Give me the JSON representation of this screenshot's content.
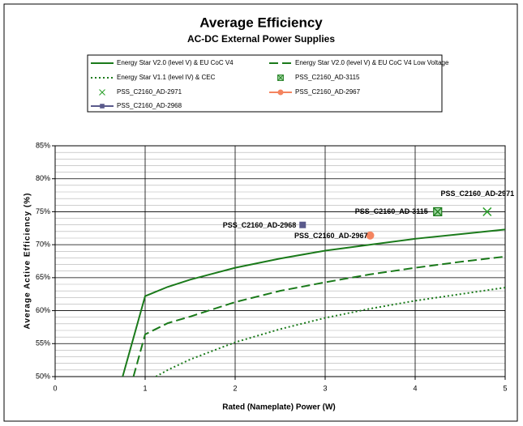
{
  "chart_data": {
    "type": "line",
    "title": "Average Efficiency",
    "subtitle": "AC-DC External Power Supplies",
    "x_label": "Rated (Nameplate) Power (W)",
    "y_label": "Average Active Efficiency (%)",
    "xlim": [
      0,
      5
    ],
    "xticks": [
      0,
      1,
      2,
      3,
      4,
      5
    ],
    "ylim": [
      50,
      85
    ],
    "yticks": [
      {
        "value": 50,
        "label": "50%"
      },
      {
        "value": 55,
        "label": "55%"
      },
      {
        "value": 60,
        "label": "60%"
      },
      {
        "value": 65,
        "label": "65%"
      },
      {
        "value": 70,
        "label": "70%"
      },
      {
        "value": 75,
        "label": "75%"
      },
      {
        "value": 80,
        "label": "80%"
      },
      {
        "value": 85,
        "label": "85%"
      }
    ],
    "grid": true,
    "series": [
      {
        "name": "Energy Star V2.0 (level V) & EU CoC V4",
        "color": "#1a7a1a",
        "style": "solid",
        "x": [
          0.75,
          1,
          1.25,
          1.5,
          2,
          2.5,
          3,
          3.5,
          4,
          4.5,
          5
        ],
        "values": [
          50,
          62.2,
          63.6,
          64.7,
          66.5,
          67.9,
          69.1,
          70.0,
          70.9,
          71.6,
          72.3
        ]
      },
      {
        "name": "Energy Star V2.0 (level V) & EU CoC V4 Low Voltage",
        "color": "#1a7a1a",
        "style": "dashed",
        "x": [
          0.87,
          1,
          1.25,
          1.5,
          2,
          2.5,
          3,
          3.5,
          4,
          4.5,
          5
        ],
        "values": [
          50,
          56.4,
          58.1,
          59.1,
          61.3,
          63.0,
          64.3,
          65.5,
          66.5,
          67.4,
          68.2
        ]
      },
      {
        "name": "Energy Star V1.1  (level IV) & CEC",
        "color": "#1a7a1a",
        "style": "dotted",
        "x": [
          1.12,
          1.25,
          1.5,
          2,
          2.5,
          3,
          3.5,
          4,
          4.5,
          5
        ],
        "values": [
          50,
          51.0,
          52.6,
          55.2,
          57.2,
          58.9,
          60.3,
          61.5,
          62.5,
          63.5
        ]
      },
      {
        "name": "PSS_C2160_AD-3115",
        "color": "#1a7a1a",
        "marker": "boxx",
        "x": [
          4.25
        ],
        "values": [
          75
        ]
      },
      {
        "name": "PSS_C2160_AD-2971",
        "color": "#2aa02a",
        "marker": "x",
        "x": [
          4.8
        ],
        "values": [
          75
        ]
      },
      {
        "name": "PSS_C2160_AD-2967",
        "color": "#f4845f",
        "marker": "circle",
        "legend_line": true,
        "x": [
          3.5
        ],
        "values": [
          71.4
        ]
      },
      {
        "name": "PSS_C2160_AD-2968",
        "color": "#5a5a8c",
        "marker": "square",
        "legend_line": true,
        "x": [
          2.75
        ],
        "values": [
          73
        ]
      }
    ]
  }
}
